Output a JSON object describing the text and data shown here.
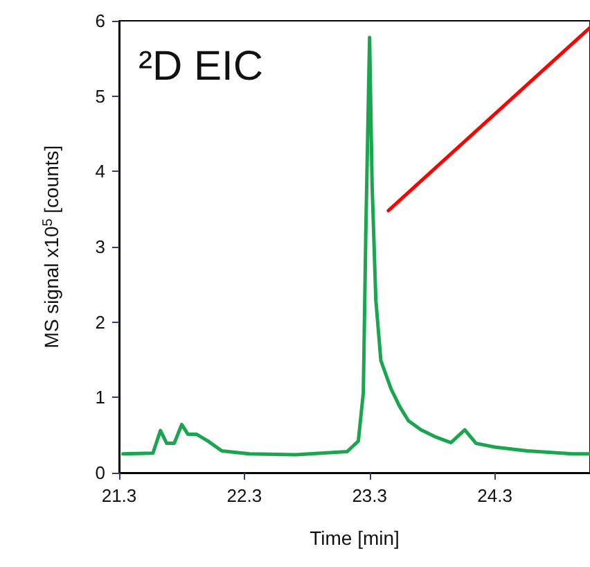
{
  "chart_data": {
    "type": "line",
    "title": "²D EIC",
    "xlabel": "Time [min]",
    "ylabel": "MS signal x10$^{5}$ [counts]",
    "xlim": [
      21.3,
      25.06
    ],
    "xticks": [
      21.3,
      22.3,
      23.3,
      24.3
    ],
    "ylim": [
      0,
      6
    ],
    "yticks": [
      0,
      1,
      2,
      3,
      4,
      5,
      6
    ],
    "grid": false,
    "marker": "none",
    "line_style": "solid",
    "series": [
      {
        "color": "#1aa64f",
        "x": [
          21.33,
          21.57,
          21.63,
          21.68,
          21.74,
          21.8,
          21.85,
          21.92,
          22.01,
          22.12,
          22.34,
          22.71,
          23.12,
          23.21,
          23.25,
          23.27,
          23.3,
          23.32,
          23.35,
          23.39,
          23.47,
          23.54,
          23.61,
          23.71,
          23.82,
          23.95,
          24.06,
          24.15,
          24.3,
          24.56,
          24.92,
          25.06
        ],
        "values": [
          0.25,
          0.26,
          0.56,
          0.39,
          0.39,
          0.64,
          0.51,
          0.51,
          0.42,
          0.29,
          0.25,
          0.24,
          0.28,
          0.42,
          1.06,
          3.21,
          5.78,
          3.83,
          2.29,
          1.49,
          1.12,
          0.88,
          0.69,
          0.57,
          0.48,
          0.4,
          0.57,
          0.39,
          0.34,
          0.29,
          0.25,
          0.25
        ]
      },
      {
        "color": "#ff0000",
        "x": [
          23.45,
          25.06
        ],
        "values": [
          3.48,
          5.91
        ]
      }
    ]
  }
}
